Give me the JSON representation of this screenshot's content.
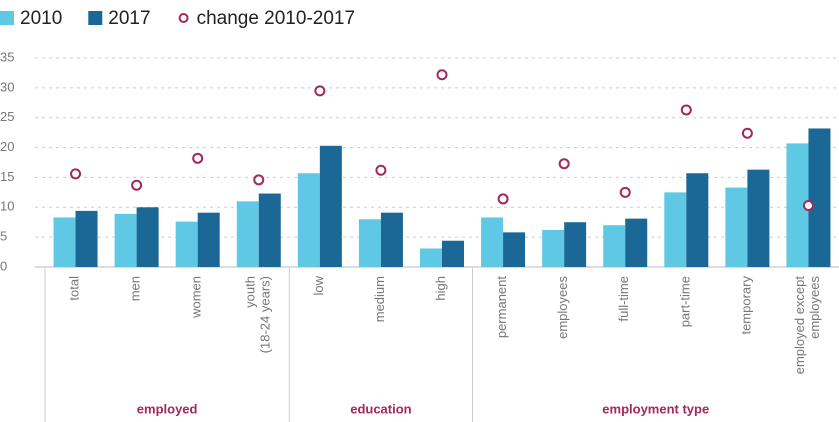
{
  "chart_data": {
    "type": "bar",
    "categories": [
      "total",
      "men",
      "women",
      "youth\n(18-24 years)",
      "low",
      "medium",
      "high",
      "permanent",
      "employees",
      "full-time",
      "part-time",
      "temporary",
      "employed except\nemployees"
    ],
    "groups": [
      {
        "label": "employed",
        "count": 4
      },
      {
        "label": "education",
        "count": 3
      },
      {
        "label": "employment type",
        "count": 6
      }
    ],
    "series": [
      {
        "name": "2010",
        "color": "#5ec8e5",
        "values": [
          8.3,
          8.9,
          7.6,
          11.0,
          15.7,
          8.0,
          3.1,
          8.3,
          6.2,
          7.0,
          12.5,
          13.3,
          20.7
        ]
      },
      {
        "name": "2017",
        "color": "#1b6896",
        "values": [
          9.4,
          10.0,
          9.1,
          12.3,
          20.3,
          9.1,
          4.4,
          5.8,
          7.5,
          8.1,
          15.7,
          16.3,
          23.2
        ]
      },
      {
        "name": "change 2010-2017",
        "color": "#a3285c",
        "type": "scatter",
        "values": [
          15.6,
          13.7,
          18.2,
          14.6,
          29.5,
          16.2,
          32.2,
          11.4,
          17.3,
          12.5,
          26.3,
          22.4,
          10.3
        ]
      }
    ],
    "ylim": [
      0,
      35
    ],
    "yticks": [
      0,
      5,
      10,
      15,
      20,
      25,
      30,
      35
    ],
    "grid": true
  }
}
